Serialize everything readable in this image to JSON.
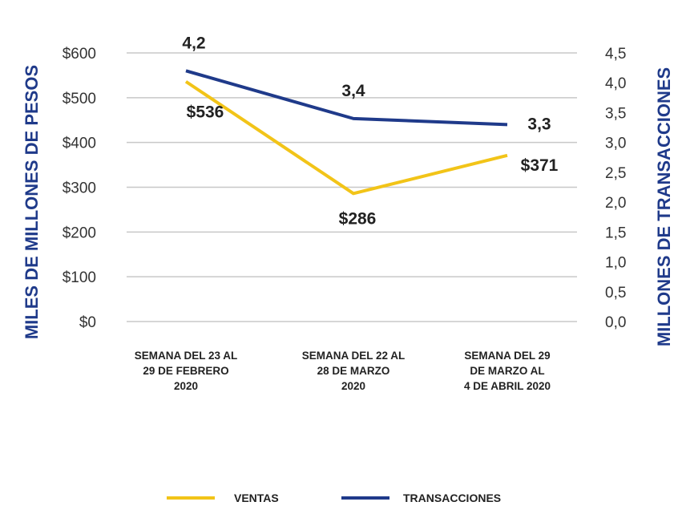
{
  "chart_data": {
    "type": "line",
    "categories": [
      [
        "SEMANA DEL 23 AL",
        "29 DE FEBRERO",
        "2020"
      ],
      [
        "SEMANA DEL 22 AL",
        "28 DE MARZO",
        "2020"
      ],
      [
        "SEMANA DEL 29",
        "DE MARZO AL",
        "4 DE ABRIL 2020"
      ]
    ],
    "ylabel_left": "MILES DE MILLONES DE PESOS",
    "ylabel_right": "MILLONES DE TRANSACCIONES",
    "ylim_left": [
      0,
      600
    ],
    "ylim_right": [
      0,
      4.5
    ],
    "yticks_left": [
      "$0",
      "$100",
      "$200",
      "$300",
      "$400",
      "$500",
      "$600"
    ],
    "yticks_right": [
      "0,0",
      "0,5",
      "1,0",
      "1,5",
      "2,0",
      "2,5",
      "3,0",
      "3,5",
      "4,0",
      "4,5"
    ],
    "grid": true,
    "legend_position": "bottom",
    "series": [
      {
        "name": "VENTAS",
        "axis": "left",
        "color": "#f2c418",
        "values": [
          536,
          286,
          371
        ],
        "labels": [
          "$536",
          "$286",
          "$371"
        ]
      },
      {
        "name": "TRANSACCIONES",
        "axis": "right",
        "color": "#1f3a8a",
        "values": [
          4.2,
          3.4,
          3.3
        ],
        "labels": [
          "4,2",
          "3,4",
          "3,3"
        ]
      }
    ]
  }
}
